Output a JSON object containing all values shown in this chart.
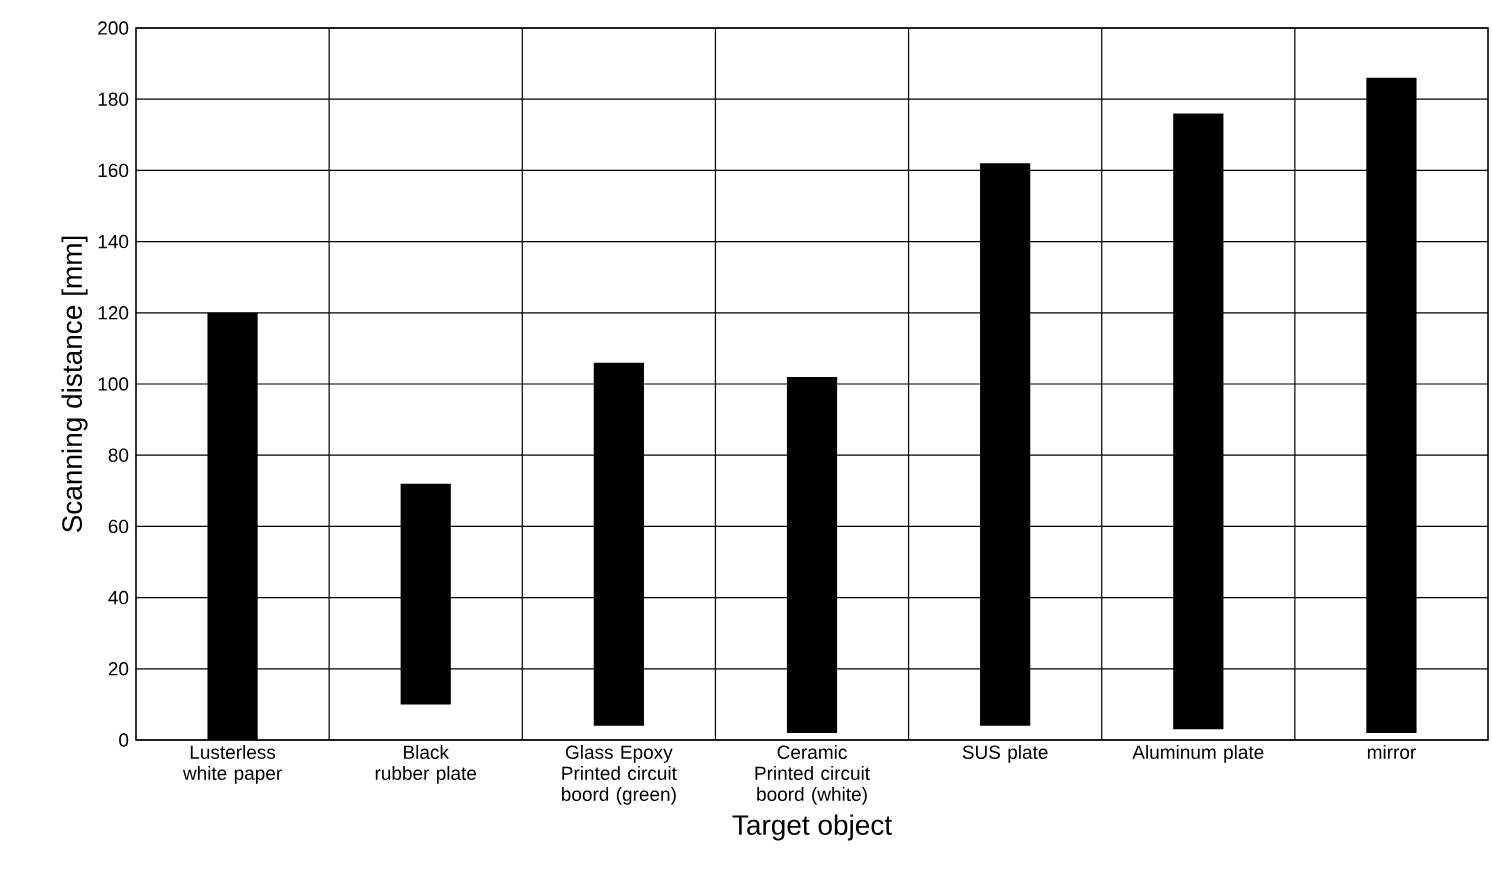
{
  "chart_data": {
    "type": "bar",
    "xlabel": "Target object",
    "ylabel": "Scanning distance [mm]",
    "categories": [
      "Lusterless white paper",
      "Black rubber plate",
      "Glass Epoxy Printed circuit boord (green)",
      "Ceramic Printed circuit boord (white)",
      "SUS plate",
      "Aluminum plate",
      "mirror"
    ],
    "base": [
      0,
      10,
      4,
      2,
      4,
      3,
      2
    ],
    "values": [
      120,
      62,
      102,
      100,
      158,
      173,
      184
    ],
    "color": "#000000",
    "ylim": [
      0,
      200
    ],
    "yticks": [
      0,
      20,
      40,
      60,
      80,
      100,
      120,
      140,
      160,
      180,
      200
    ],
    "grid": true
  }
}
